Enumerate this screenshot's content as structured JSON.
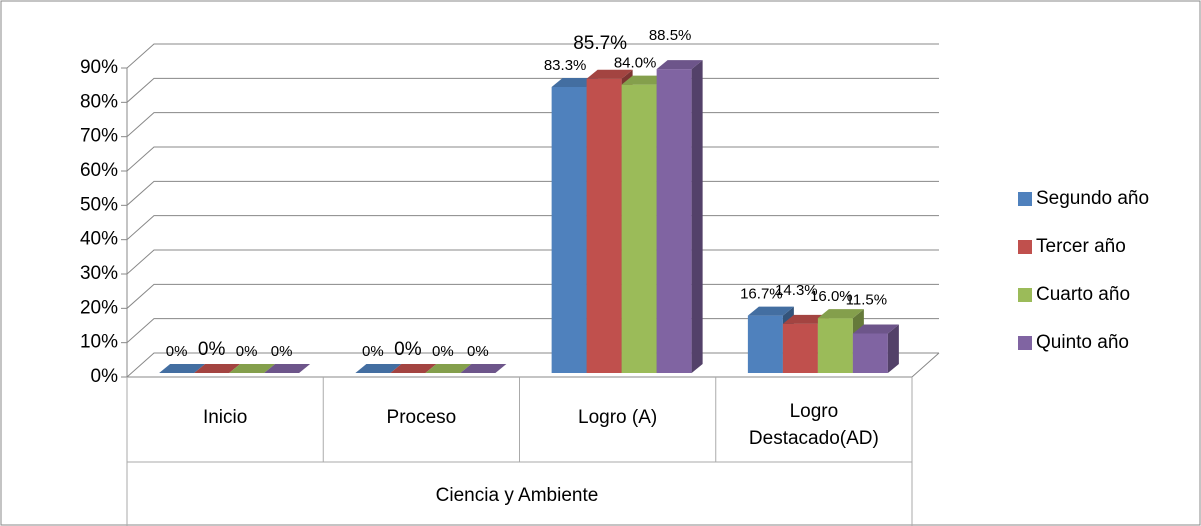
{
  "chart_data": {
    "type": "bar3d",
    "categories": [
      "Inicio",
      "Proceso",
      "Logro (A)",
      "Logro Destacado(AD)"
    ],
    "group_label": "Ciencia y Ambiente",
    "series": [
      {
        "name": "Segundo año",
        "color": "#4F81BD",
        "values": [
          0,
          0,
          83.3,
          16.7
        ],
        "value_labels": [
          "0%",
          "0%",
          "83.3%",
          "16.7%"
        ]
      },
      {
        "name": "Tercer año",
        "color": "#C0504D",
        "values": [
          0,
          0,
          85.7,
          14.3
        ],
        "value_labels": [
          "0%",
          "0%",
          "85.7%",
          "14.3%"
        ]
      },
      {
        "name": "Cuarto año",
        "color": "#9BBB59",
        "values": [
          0,
          0,
          84.0,
          16.0
        ],
        "value_labels": [
          "0%",
          "0%",
          "84.0%",
          "16.0%"
        ]
      },
      {
        "name": "Quinto año",
        "color": "#8064A2",
        "values": [
          0,
          0,
          88.5,
          11.5
        ],
        "value_labels": [
          "0%",
          "0%",
          "88.5%",
          "11.5%"
        ]
      }
    ],
    "ylim": [
      0,
      90
    ],
    "yticks": [
      {
        "value": 0,
        "label": "0%"
      },
      {
        "value": 10,
        "label": "10%"
      },
      {
        "value": 20,
        "label": "20%"
      },
      {
        "value": 30,
        "label": "30%"
      },
      {
        "value": 40,
        "label": "40%"
      },
      {
        "value": 50,
        "label": "50%"
      },
      {
        "value": 60,
        "label": "60%"
      },
      {
        "value": 70,
        "label": "70%"
      },
      {
        "value": 80,
        "label": "80%"
      },
      {
        "value": 90,
        "label": "90%"
      }
    ],
    "grid": true,
    "legend": "right"
  }
}
